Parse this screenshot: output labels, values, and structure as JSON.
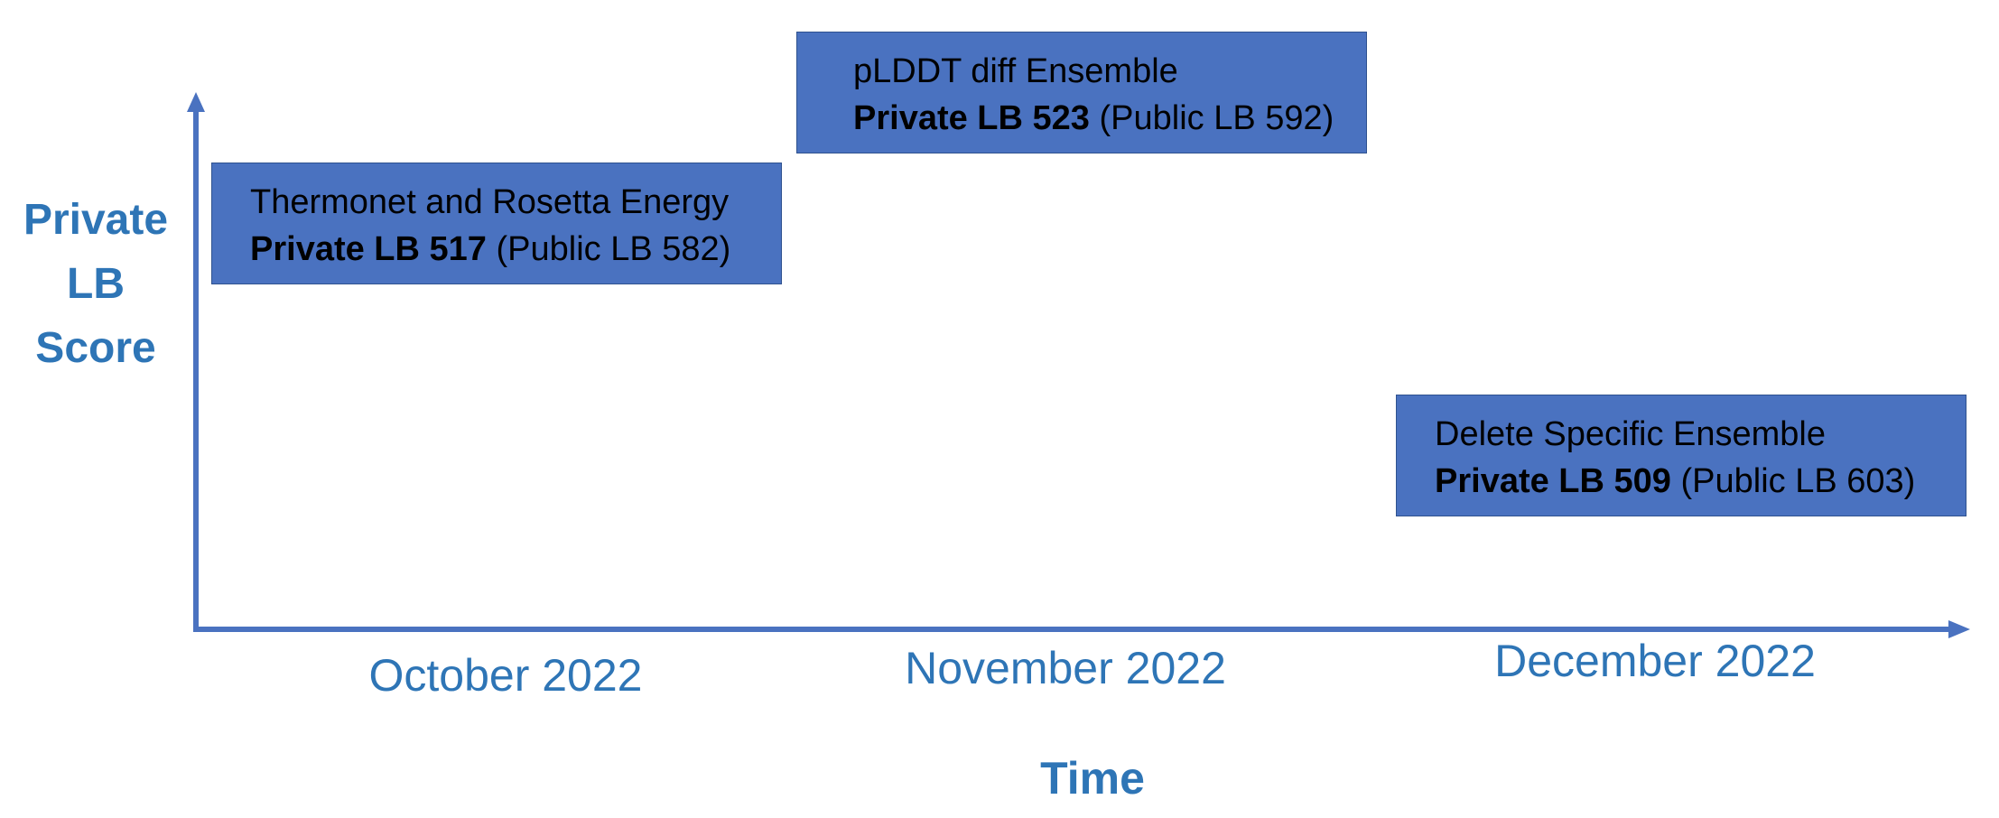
{
  "y_axis": {
    "label_lines": [
      "Private",
      "LB",
      "Score"
    ]
  },
  "x_axis": {
    "label": "Time",
    "months": [
      "October 2022",
      "November 2022",
      "December 2022"
    ]
  },
  "milestones": [
    {
      "title": "Thermonet and Rosetta Energy",
      "private_label": "Private LB 517",
      "public_label": "(Public LB 582)",
      "private_lb": 517,
      "public_lb": 582,
      "month": "October 2022"
    },
    {
      "title": "pLDDT diff Ensemble",
      "private_label": "Private LB 523",
      "public_label": "(Public LB 592)",
      "private_lb": 523,
      "public_lb": 592,
      "month": "November 2022"
    },
    {
      "title": "Delete Specific Ensemble",
      "private_label": "Private LB 509",
      "public_label": "(Public LB 603)",
      "private_lb": 509,
      "public_lb": 603,
      "month": "December 2022"
    }
  ],
  "colors": {
    "axis": "#4a72c0",
    "box_fill": "#4a72c0",
    "label_text": "#2e75b6"
  }
}
